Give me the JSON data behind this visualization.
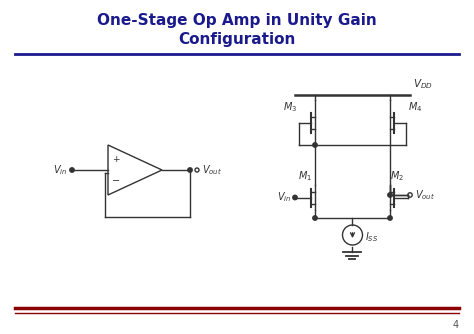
{
  "title_line1": "One-Stage Op Amp in Unity Gain",
  "title_line2": "Configuration",
  "title_color": "#1a1a8c",
  "title_fontsize": 11,
  "title_underline_color": "#1a1a8c",
  "bg_color": "#ffffff",
  "page_number": "4",
  "page_num_color": "#555555",
  "line_color": "#333333",
  "bottom_line1_color": "#8b0000",
  "bottom_line2_color": "#8b0000"
}
